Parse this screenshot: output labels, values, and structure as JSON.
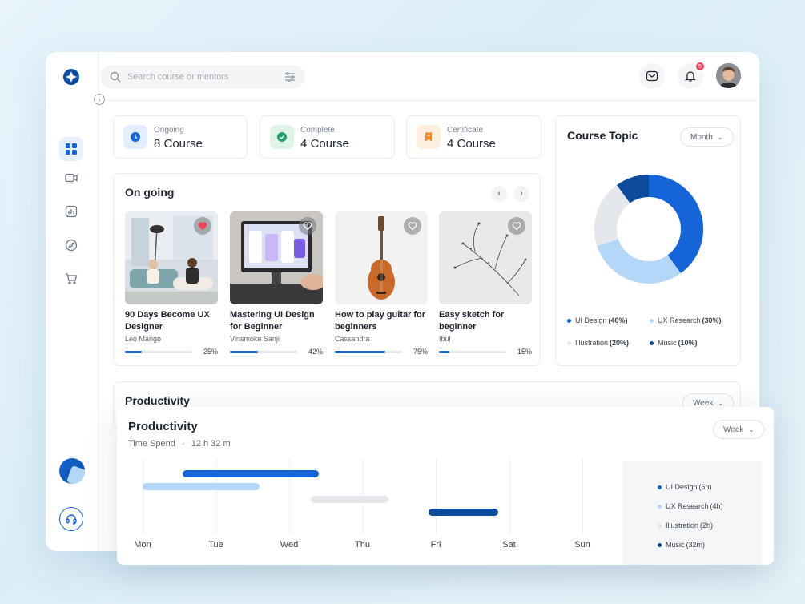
{
  "search": {
    "placeholder": "Search course or mentors"
  },
  "notifications": {
    "count": "5"
  },
  "stats": [
    {
      "label": "Ongoing",
      "value": "8 Course",
      "color": "#1565d8",
      "icon": "clock-icon"
    },
    {
      "label": "Complete",
      "value": "4 Course",
      "color": "#22a06b",
      "icon": "check-icon"
    },
    {
      "label": "Certificate",
      "value": "4 Course",
      "color": "#f08c28",
      "icon": "bookmark-icon"
    }
  ],
  "ongoing": {
    "title": "On going",
    "courses": [
      {
        "title": "90 Days Become UX Designer",
        "mentor": "Leo Mango",
        "progress": "25%",
        "progress_value": 25,
        "liked": true
      },
      {
        "title": "Mastering UI Design for Beginner",
        "mentor": "Vinsmoke Sanji",
        "progress": "42%",
        "progress_value": 42,
        "liked": false
      },
      {
        "title": "How to play guitar for beginners",
        "mentor": "Cassandra",
        "progress": "75%",
        "progress_value": 75,
        "liked": false
      },
      {
        "title": "Easy sketch for beginner",
        "mentor": "Ibul",
        "progress": "15%",
        "progress_value": 15,
        "liked": false
      }
    ]
  },
  "course_topic": {
    "title": "Course Topic",
    "period": "Month",
    "legend": [
      {
        "name": "UI Design",
        "value": "(40%)",
        "color": "#1565d8"
      },
      {
        "name": "UX Research",
        "value": "(30%)",
        "color": "#b4d6f7"
      },
      {
        "name": "Illustration",
        "value": "(20%)",
        "color": "#e4e7eb"
      },
      {
        "name": "Music",
        "value": "(10%)",
        "color": "#0d4c9c"
      }
    ]
  },
  "productivity_bg": {
    "title": "Productivity",
    "period": "Week"
  },
  "productivity": {
    "title": "Productivity",
    "time_label": "Time Spend",
    "time_value": "12 h 32 m",
    "period": "Week",
    "days": [
      "Mon",
      "Tue",
      "Wed",
      "Thu",
      "Fri",
      "Sat",
      "Sun"
    ],
    "legend": [
      {
        "name": "UI Design",
        "value": "(6h)",
        "color": "#1565d8"
      },
      {
        "name": "UX Research",
        "value": "(4h)",
        "color": "#b4d6f7"
      },
      {
        "name": "Illustration",
        "value": "(2h)",
        "color": "#e4e7eb"
      },
      {
        "name": "Music",
        "value": "(32m)",
        "color": "#0d4c9c"
      }
    ]
  },
  "chart_data": [
    {
      "type": "pie",
      "title": "Course Topic",
      "categories": [
        "UI Design",
        "UX Research",
        "Illustration",
        "Music"
      ],
      "values": [
        40,
        30,
        20,
        10
      ],
      "colors": [
        "#1565d8",
        "#b4d6f7",
        "#e4e7eb",
        "#0d4c9c"
      ]
    },
    {
      "type": "bar",
      "title": "Productivity",
      "xlabel": "",
      "ylabel": "",
      "categories": [
        "Mon",
        "Tue",
        "Wed",
        "Thu",
        "Fri",
        "Sat",
        "Sun"
      ],
      "series": [
        {
          "name": "UI Design",
          "start": 1.55,
          "end": 3.4,
          "color": "#1565d8"
        },
        {
          "name": "UX Research",
          "start": 1.0,
          "end": 2.6,
          "color": "#b4d6f7"
        },
        {
          "name": "Illustration",
          "start": 3.3,
          "end": 4.35,
          "color": "#e4e7eb"
        },
        {
          "name": "Music",
          "start": 4.9,
          "end": 5.85,
          "color": "#0d4c9c"
        }
      ]
    }
  ]
}
